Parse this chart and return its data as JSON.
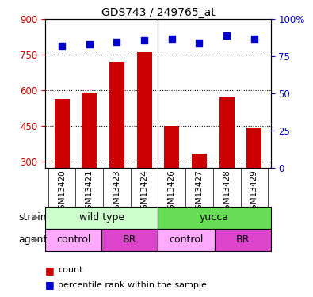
{
  "title": "GDS743 / 249765_at",
  "samples": [
    "GSM13420",
    "GSM13421",
    "GSM13423",
    "GSM13424",
    "GSM13426",
    "GSM13427",
    "GSM13428",
    "GSM13429"
  ],
  "counts": [
    565,
    590,
    720,
    760,
    450,
    335,
    570,
    445
  ],
  "percentiles": [
    82,
    83,
    85,
    86,
    87,
    84,
    89,
    87
  ],
  "ylim_left": [
    275,
    900
  ],
  "ylim_right": [
    0,
    100
  ],
  "yticks_left": [
    300,
    450,
    600,
    750,
    900
  ],
  "yticks_right": [
    0,
    25,
    50,
    75,
    100
  ],
  "bar_color": "#cc0000",
  "dot_color": "#0000cc",
  "strain_labels": [
    "wild type",
    "yucca"
  ],
  "strain_ranges": [
    [
      0,
      4
    ],
    [
      4,
      8
    ]
  ],
  "strain_colors": [
    "#ccffcc",
    "#66dd55"
  ],
  "agent_labels": [
    "control",
    "BR",
    "control",
    "BR"
  ],
  "agent_ranges": [
    [
      0,
      2
    ],
    [
      2,
      4
    ],
    [
      4,
      6
    ],
    [
      6,
      8
    ]
  ],
  "agent_colors": [
    "#ffaaff",
    "#dd44cc",
    "#ffaaff",
    "#dd44cc"
  ],
  "bar_width": 0.55,
  "background_color": "#ffffff",
  "tick_label_color_left": "#cc0000",
  "tick_label_color_right": "#0000cc",
  "tick_bg_color": "#cccccc",
  "n_samples": 8
}
